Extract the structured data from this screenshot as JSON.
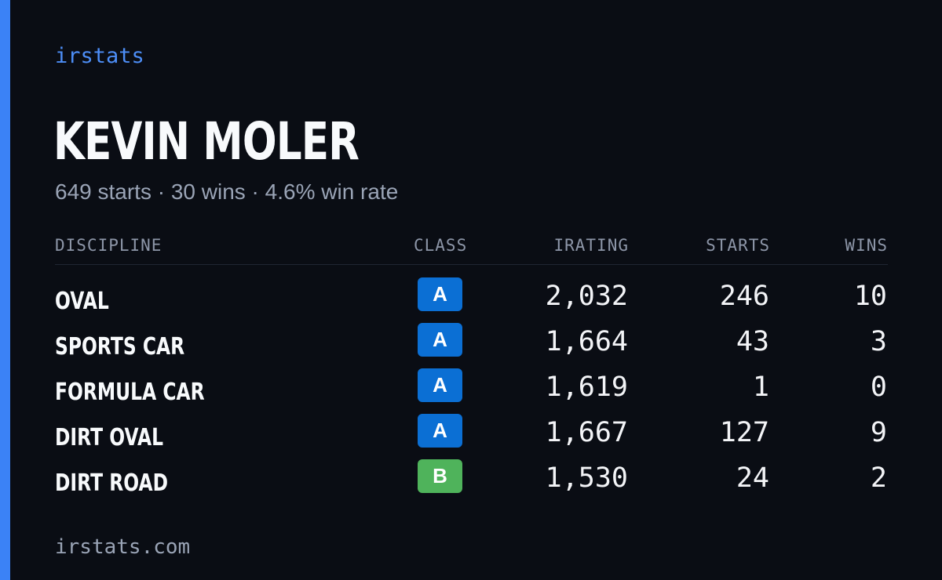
{
  "brand": "irstats",
  "driver": {
    "name": "KEVIN MOLER",
    "summary": "649 starts · 30 wins · 4.6% win rate"
  },
  "table": {
    "headers": {
      "discipline": "DISCIPLINE",
      "class": "CLASS",
      "irating": "IRATING",
      "starts": "STARTS",
      "wins": "WINS"
    },
    "rows": [
      {
        "discipline": "OVAL",
        "class": "A",
        "class_color": "#0b6fd4",
        "irating": "2,032",
        "starts": "246",
        "wins": "10"
      },
      {
        "discipline": "SPORTS CAR",
        "class": "A",
        "class_color": "#0b6fd4",
        "irating": "1,664",
        "starts": "43",
        "wins": "3"
      },
      {
        "discipline": "FORMULA CAR",
        "class": "A",
        "class_color": "#0b6fd4",
        "irating": "1,619",
        "starts": "1",
        "wins": "0"
      },
      {
        "discipline": "DIRT OVAL",
        "class": "A",
        "class_color": "#0b6fd4",
        "irating": "1,667",
        "starts": "127",
        "wins": "9"
      },
      {
        "discipline": "DIRT ROAD",
        "class": "B",
        "class_color": "#4fb35b",
        "irating": "1,530",
        "starts": "24",
        "wins": "2"
      }
    ]
  },
  "footer": "irstats.com",
  "colors": {
    "background": "#0a0d14",
    "accent": "#3b82f6"
  }
}
